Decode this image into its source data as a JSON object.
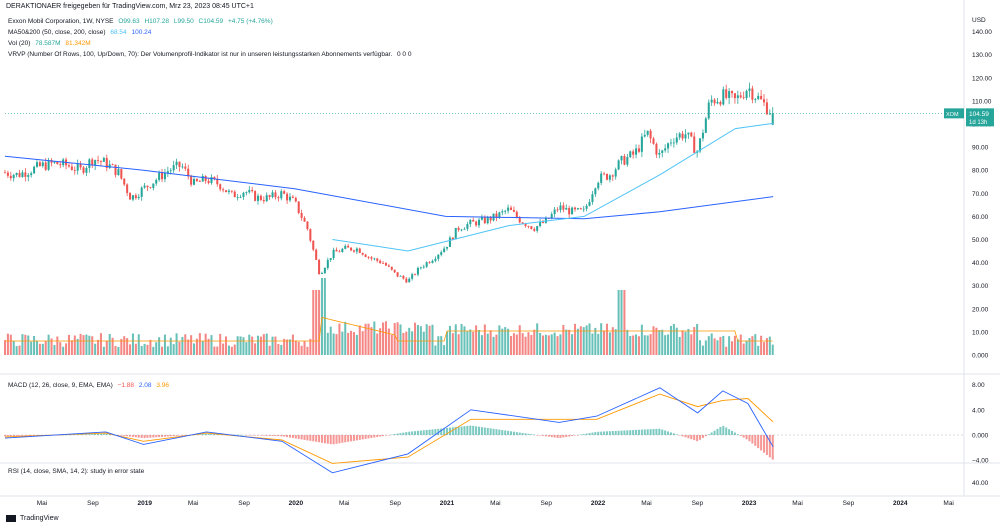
{
  "header": {
    "publisher": "DERAKTIONAER freigegeben für TradingView.com, Mrz 23, 2023 08:45 UTC+1"
  },
  "legends": {
    "symbol": {
      "name": "Exxon Mobil Corporation, 1W, NYSE",
      "o": "O99.63",
      "h": "H107.28",
      "l": "L99.50",
      "c": "C104.59",
      "chg": "+4.75 (+4.76%)"
    },
    "ma": {
      "label": "MA50&200 (50, close, 200, close)",
      "v1": "68.54",
      "v2": "100.24"
    },
    "vol": {
      "label": "Vol (20)",
      "v1": "78.587M",
      "v2": "81.342M"
    },
    "vrvp": {
      "label": "VRVP (Number Of Rows, 100, Up/Down, 70): Der Volumenprofil-Indikator ist nur in unseren leistungsstarken Abonnements verfügbar.",
      "tail": "0  0  0"
    },
    "macd": {
      "label": "MACD (12, 26, close, 9, EMA, EMA)",
      "v1": "−1.88",
      "v2": "2.08",
      "v3": "3.96"
    },
    "rsi": {
      "label": "RSI (14, close, SMA, 14, 2): study in error state"
    }
  },
  "price_axis": {
    "currency": "USD",
    "ticks": [
      "140.00",
      "130.00",
      "120.00",
      "110.00",
      "100.00",
      "90.00",
      "80.00",
      "70.00",
      "60.00",
      "50.00",
      "40.00",
      "30.00",
      "20.00",
      "10.00",
      "0.000"
    ]
  },
  "last_price": {
    "symbol": "XOM",
    "price": "104.59",
    "countdown": "1d 13h"
  },
  "macd_axis": {
    "ticks": [
      "8.00",
      "4.00",
      "0.000",
      "−4.00"
    ]
  },
  "rsi_axis": {
    "ticks": [
      "40.00"
    ]
  },
  "time_axis": {
    "labels": [
      "Mai",
      "Sep",
      "2019",
      "Mai",
      "Sep",
      "2020",
      "Mai",
      "Sep",
      "2021",
      "Mai",
      "Sep",
      "2022",
      "Mai",
      "Sep",
      "2023",
      "Mai",
      "Sep",
      "2024",
      "Mai"
    ]
  },
  "footer": {
    "brand": "TradingView"
  },
  "colors": {
    "up": "#26a69a",
    "down": "#ef5350",
    "ma50": "#4fc3f7",
    "ma200": "#2962ff",
    "macd": "#2962ff",
    "signal": "#ff9800",
    "vol_ma": "#ff9800"
  },
  "chart_data": {
    "type": "candlestick",
    "timeframe": "1W",
    "ylim": [
      0,
      145
    ],
    "x_range": [
      "2018-02",
      "2024-06"
    ],
    "close_path": [
      [
        "2018-02",
        79
      ],
      [
        "2018-03",
        78
      ],
      [
        "2018-04",
        80
      ],
      [
        "2018-05",
        82
      ],
      [
        "2018-06",
        83
      ],
      [
        "2018-07",
        82
      ],
      [
        "2018-08",
        80
      ],
      [
        "2018-09",
        85
      ],
      [
        "2018-10",
        83
      ],
      [
        "2018-11",
        79
      ],
      [
        "2018-12",
        68
      ],
      [
        "2019-01",
        72
      ],
      [
        "2019-02",
        76
      ],
      [
        "2019-03",
        80
      ],
      [
        "2019-04",
        82
      ],
      [
        "2019-05",
        74
      ],
      [
        "2019-06",
        76
      ],
      [
        "2019-07",
        74
      ],
      [
        "2019-08",
        69
      ],
      [
        "2019-09",
        71
      ],
      [
        "2019-10",
        68
      ],
      [
        "2019-11",
        68
      ],
      [
        "2019-12",
        70
      ],
      [
        "2020-01",
        66
      ],
      [
        "2020-02",
        55
      ],
      [
        "2020-03",
        35
      ],
      [
        "2020-04",
        44
      ],
      [
        "2020-05",
        46
      ],
      [
        "2020-06",
        46
      ],
      [
        "2020-07",
        42
      ],
      [
        "2020-08",
        40
      ],
      [
        "2020-09",
        35
      ],
      [
        "2020-10",
        32
      ],
      [
        "2020-11",
        38
      ],
      [
        "2020-12",
        42
      ],
      [
        "2021-01",
        47
      ],
      [
        "2021-02",
        55
      ],
      [
        "2021-03",
        57
      ],
      [
        "2021-04",
        58
      ],
      [
        "2021-05",
        60
      ],
      [
        "2021-06",
        63
      ],
      [
        "2021-07",
        58
      ],
      [
        "2021-08",
        55
      ],
      [
        "2021-09",
        58
      ],
      [
        "2021-10",
        64
      ],
      [
        "2021-11",
        62
      ],
      [
        "2021-12",
        62
      ],
      [
        "2022-01",
        76
      ],
      [
        "2022-02",
        78
      ],
      [
        "2022-03",
        84
      ],
      [
        "2022-04",
        87
      ],
      [
        "2022-05",
        96
      ],
      [
        "2022-06",
        86
      ],
      [
        "2022-07",
        94
      ],
      [
        "2022-08",
        96
      ],
      [
        "2022-09",
        88
      ],
      [
        "2022-10",
        110
      ],
      [
        "2022-11",
        112
      ],
      [
        "2022-12",
        110
      ],
      [
        "2023-01",
        116
      ],
      [
        "2023-02",
        110
      ],
      [
        "2023-03",
        104.59
      ]
    ],
    "ma50_path": [
      [
        "2020-04",
        50
      ],
      [
        "2020-10",
        45
      ],
      [
        "2021-06",
        56
      ],
      [
        "2021-12",
        60
      ],
      [
        "2022-06",
        78
      ],
      [
        "2022-12",
        98
      ],
      [
        "2023-03",
        100.24
      ]
    ],
    "ma200_path": [
      [
        "2018-02",
        86
      ],
      [
        "2019-01",
        80
      ],
      [
        "2020-01",
        72
      ],
      [
        "2021-01",
        60
      ],
      [
        "2021-12",
        59
      ],
      [
        "2022-06",
        62
      ],
      [
        "2023-03",
        68.54
      ]
    ],
    "macd_path": [
      [
        "2018-02",
        -0.5
      ],
      [
        "2018-10",
        0.5
      ],
      [
        "2019-01",
        -1.5
      ],
      [
        "2019-06",
        0.5
      ],
      [
        "2019-12",
        -1
      ],
      [
        "2020-04",
        -6
      ],
      [
        "2020-10",
        -3
      ],
      [
        "2021-03",
        4
      ],
      [
        "2021-10",
        2
      ],
      [
        "2022-01",
        3
      ],
      [
        "2022-06",
        7.5
      ],
      [
        "2022-09",
        3.5
      ],
      [
        "2022-11",
        7
      ],
      [
        "2023-01",
        5
      ],
      [
        "2023-03",
        -1.88
      ]
    ],
    "signal_path": [
      [
        "2018-02",
        -0.3
      ],
      [
        "2018-10",
        0.3
      ],
      [
        "2019-01",
        -1
      ],
      [
        "2019-06",
        0.3
      ],
      [
        "2019-12",
        -0.8
      ],
      [
        "2020-04",
        -4.5
      ],
      [
        "2020-10",
        -3.5
      ],
      [
        "2021-03",
        2.5
      ],
      [
        "2021-10",
        2.5
      ],
      [
        "2022-01",
        2.5
      ],
      [
        "2022-06",
        6.5
      ],
      [
        "2022-09",
        4.5
      ],
      [
        "2022-11",
        5.5
      ],
      [
        "2023-01",
        5.8
      ],
      [
        "2023-03",
        2.08
      ]
    ],
    "last": {
      "open": 99.63,
      "high": 107.28,
      "low": 99.5,
      "close": 104.59,
      "change": 4.75,
      "change_pct": 4.76
    }
  }
}
